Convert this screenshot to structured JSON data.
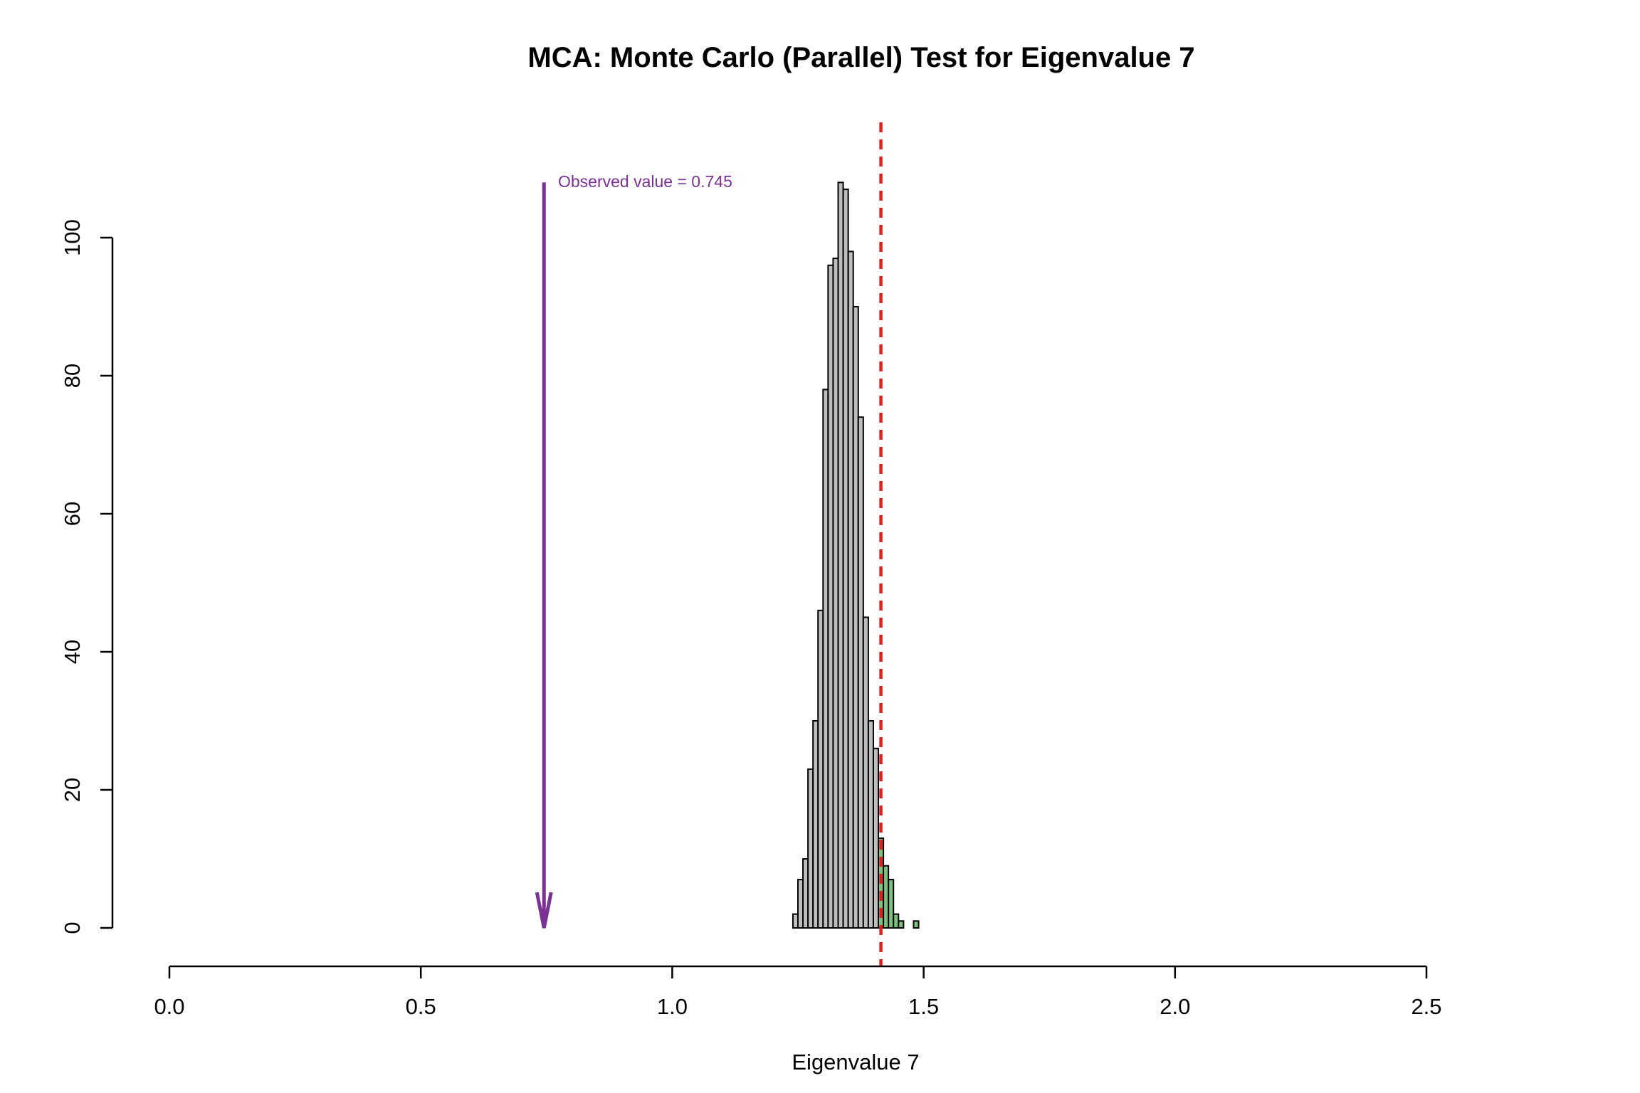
{
  "chart_data": {
    "type": "bar",
    "title": "MCA: Monte Carlo (Parallel) Test for Eigenvalue 7",
    "xlabel": "Eigenvalue 7",
    "ylabel": "",
    "xlim": [
      0,
      2.5
    ],
    "ylim": [
      0,
      100
    ],
    "grid": false,
    "legend": "none",
    "x_ticks": [
      {
        "value": 0.0,
        "label": "0.0"
      },
      {
        "value": 0.5,
        "label": "0.5"
      },
      {
        "value": 1.0,
        "label": "1.0"
      },
      {
        "value": 1.5,
        "label": "1.5"
      },
      {
        "value": 2.0,
        "label": "2.0"
      },
      {
        "value": 2.5,
        "label": "2.5"
      }
    ],
    "y_ticks": [
      {
        "value": 0,
        "label": "0"
      },
      {
        "value": 20,
        "label": "20"
      },
      {
        "value": 40,
        "label": "40"
      },
      {
        "value": 60,
        "label": "60"
      },
      {
        "value": 80,
        "label": "80"
      },
      {
        "value": 100,
        "label": "100"
      }
    ],
    "bin_width": 0.01,
    "bins": [
      {
        "start": 1.24,
        "count": 2,
        "color": "#bebebe"
      },
      {
        "start": 1.25,
        "count": 7,
        "color": "#bebebe"
      },
      {
        "start": 1.26,
        "count": 10,
        "color": "#bebebe"
      },
      {
        "start": 1.27,
        "count": 23,
        "color": "#bebebe"
      },
      {
        "start": 1.28,
        "count": 30,
        "color": "#bebebe"
      },
      {
        "start": 1.29,
        "count": 46,
        "color": "#bebebe"
      },
      {
        "start": 1.3,
        "count": 78,
        "color": "#bebebe"
      },
      {
        "start": 1.31,
        "count": 96,
        "color": "#bebebe"
      },
      {
        "start": 1.32,
        "count": 97,
        "color": "#bebebe"
      },
      {
        "start": 1.33,
        "count": 108,
        "color": "#bebebe"
      },
      {
        "start": 1.34,
        "count": 107,
        "color": "#bebebe"
      },
      {
        "start": 1.35,
        "count": 98,
        "color": "#bebebe"
      },
      {
        "start": 1.36,
        "count": 90,
        "color": "#bebebe"
      },
      {
        "start": 1.37,
        "count": 74,
        "color": "#bebebe"
      },
      {
        "start": 1.38,
        "count": 45,
        "color": "#bebebe"
      },
      {
        "start": 1.39,
        "count": 30,
        "color": "#bebebe"
      },
      {
        "start": 1.4,
        "count": 26,
        "color": "#bebebe"
      },
      {
        "start": 1.41,
        "count": 13,
        "color": "#7fbf7f"
      },
      {
        "start": 1.42,
        "count": 9,
        "color": "#7fbf7f"
      },
      {
        "start": 1.43,
        "count": 7,
        "color": "#7fbf7f"
      },
      {
        "start": 1.44,
        "count": 2,
        "color": "#7fbf7f"
      },
      {
        "start": 1.45,
        "count": 1,
        "color": "#7fbf7f"
      },
      {
        "start": 1.46,
        "count": 0,
        "color": "#7fbf7f"
      },
      {
        "start": 1.47,
        "count": 0,
        "color": "#7fbf7f"
      },
      {
        "start": 1.48,
        "count": 1,
        "color": "#7fbf7f"
      }
    ],
    "threshold_line": {
      "value": 1.415,
      "color": "#dd2222"
    },
    "observed": {
      "value": 0.745,
      "label": "Observed value = 0.745",
      "color": "#7b3294",
      "arrow_from": 108,
      "arrow_to": 0
    }
  }
}
